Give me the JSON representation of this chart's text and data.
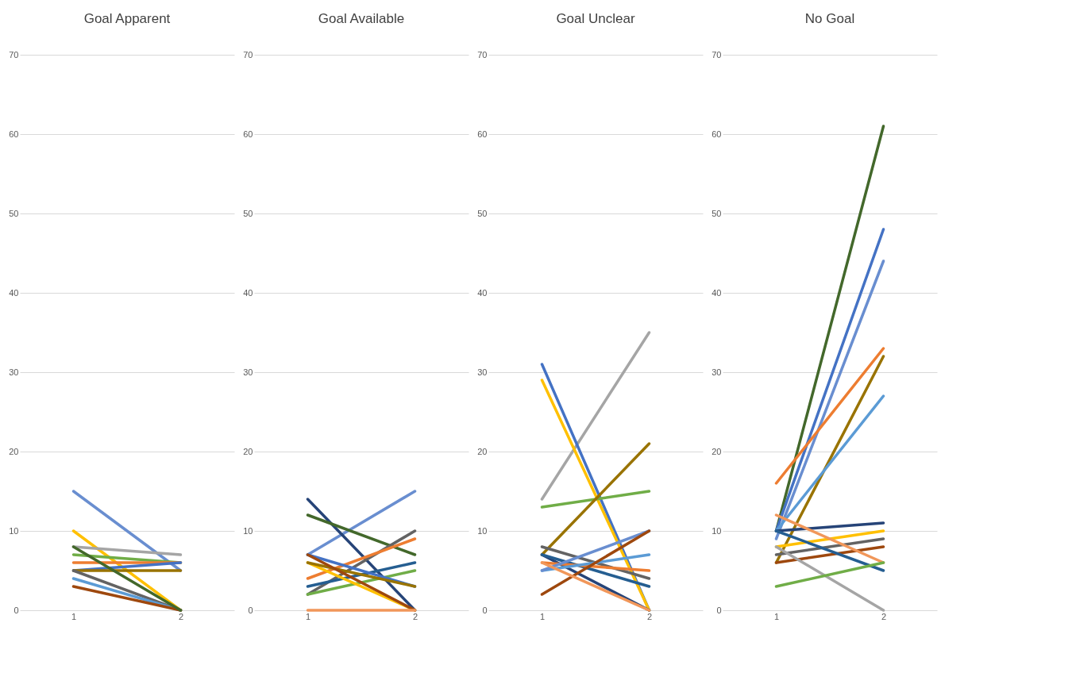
{
  "chart_data": [
    {
      "type": "line",
      "title": "Goal Apparent",
      "categories": [
        "1",
        "2"
      ],
      "ylim": [
        0,
        70
      ],
      "yticks": [
        0,
        10,
        20,
        30,
        40,
        50,
        60,
        70
      ],
      "grid": "y",
      "series": [
        {
          "color": "#698ed0",
          "values": [
            15,
            5
          ]
        },
        {
          "color": "#ffc000",
          "values": [
            10,
            0
          ]
        },
        {
          "color": "#a5a5a5",
          "values": [
            8,
            7
          ]
        },
        {
          "color": "#70ad47",
          "values": [
            7,
            6
          ]
        },
        {
          "color": "#ed7d31",
          "values": [
            6,
            6
          ]
        },
        {
          "color": "#4472c4",
          "values": [
            5,
            6
          ]
        },
        {
          "color": "#997300",
          "values": [
            5,
            5
          ]
        },
        {
          "color": "#636363",
          "values": [
            5,
            0
          ]
        },
        {
          "color": "#5b9bd5",
          "values": [
            4,
            0
          ]
        },
        {
          "color": "#9e480e",
          "values": [
            3,
            0
          ]
        },
        {
          "color": "#43682b",
          "values": [
            8,
            0
          ]
        }
      ]
    },
    {
      "type": "line",
      "title": "Goal Available",
      "categories": [
        "1",
        "2"
      ],
      "ylim": [
        0,
        70
      ],
      "yticks": [
        0,
        10,
        20,
        30,
        40,
        50,
        60,
        70
      ],
      "grid": "y",
      "series": [
        {
          "color": "#698ed0",
          "values": [
            7,
            15
          ]
        },
        {
          "color": "#264478",
          "values": [
            14,
            0
          ]
        },
        {
          "color": "#43682b",
          "values": [
            12,
            7
          ]
        },
        {
          "color": "#636363",
          "values": [
            2,
            10
          ]
        },
        {
          "color": "#ed7d31",
          "values": [
            4,
            9
          ]
        },
        {
          "color": "#255e91",
          "values": [
            3,
            6
          ]
        },
        {
          "color": "#70ad47",
          "values": [
            2,
            5
          ]
        },
        {
          "color": "#4472c4",
          "values": [
            7,
            3
          ]
        },
        {
          "color": "#ffc000",
          "values": [
            6,
            0
          ]
        },
        {
          "color": "#997300",
          "values": [
            6,
            3
          ]
        },
        {
          "color": "#9e480e",
          "values": [
            7,
            0
          ]
        },
        {
          "color": "#f1975a",
          "values": [
            0,
            0
          ]
        }
      ]
    },
    {
      "type": "line",
      "title": "Goal Unclear",
      "categories": [
        "1",
        "2"
      ],
      "ylim": [
        0,
        70
      ],
      "yticks": [
        0,
        10,
        20,
        30,
        40,
        50,
        60,
        70
      ],
      "grid": "y",
      "series": [
        {
          "color": "#a5a5a5",
          "values": [
            14,
            35
          ]
        },
        {
          "color": "#4472c4",
          "values": [
            31,
            0
          ]
        },
        {
          "color": "#ffc000",
          "values": [
            29,
            0
          ]
        },
        {
          "color": "#70ad47",
          "values": [
            13,
            15
          ]
        },
        {
          "color": "#997300",
          "values": [
            7,
            21
          ]
        },
        {
          "color": "#636363",
          "values": [
            8,
            4
          ]
        },
        {
          "color": "#264478",
          "values": [
            7,
            0
          ]
        },
        {
          "color": "#255e91",
          "values": [
            7,
            3
          ]
        },
        {
          "color": "#ed7d31",
          "values": [
            6,
            5
          ]
        },
        {
          "color": "#5b9bd5",
          "values": [
            5,
            7
          ]
        },
        {
          "color": "#698ed0",
          "values": [
            5,
            10
          ]
        },
        {
          "color": "#9e480e",
          "values": [
            2,
            10
          ]
        },
        {
          "color": "#f1975a",
          "values": [
            6,
            0
          ]
        }
      ]
    },
    {
      "type": "line",
      "title": "No Goal",
      "categories": [
        "1",
        "2"
      ],
      "ylim": [
        0,
        70
      ],
      "yticks": [
        0,
        10,
        20,
        30,
        40,
        50,
        60,
        70
      ],
      "grid": "y",
      "series": [
        {
          "color": "#43682b",
          "values": [
            10,
            61
          ]
        },
        {
          "color": "#4472c4",
          "values": [
            10,
            48
          ]
        },
        {
          "color": "#698ed0",
          "values": [
            9,
            44
          ]
        },
        {
          "color": "#ed7d31",
          "values": [
            16,
            33
          ]
        },
        {
          "color": "#997300",
          "values": [
            6,
            32
          ]
        },
        {
          "color": "#5b9bd5",
          "values": [
            10,
            27
          ]
        },
        {
          "color": "#264478",
          "values": [
            10,
            11
          ]
        },
        {
          "color": "#ffc000",
          "values": [
            8,
            10
          ]
        },
        {
          "color": "#636363",
          "values": [
            7,
            9
          ]
        },
        {
          "color": "#9e480e",
          "values": [
            6,
            8
          ]
        },
        {
          "color": "#f1975a",
          "values": [
            12,
            6
          ]
        },
        {
          "color": "#255e91",
          "values": [
            10,
            5
          ]
        },
        {
          "color": "#a5a5a5",
          "values": [
            8,
            0
          ]
        },
        {
          "color": "#70ad47",
          "values": [
            3,
            6
          ]
        }
      ]
    }
  ]
}
